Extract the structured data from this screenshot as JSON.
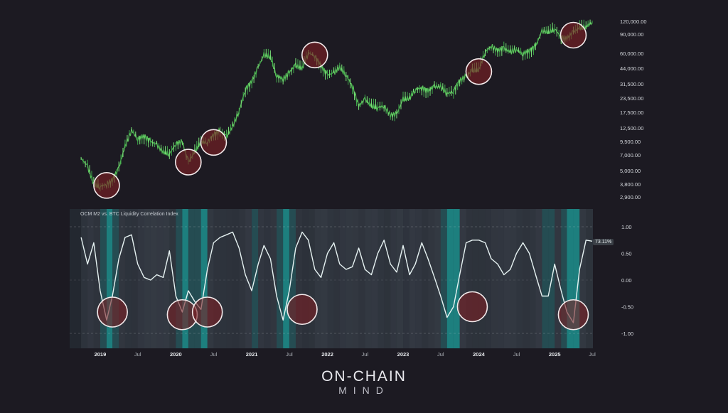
{
  "chart_data": [
    {
      "type": "line",
      "title": "",
      "scale": "log",
      "series": [
        {
          "color": "#5fd35f",
          "x": [
            "2018-10",
            "2018-11",
            "2018-12",
            "2019-01",
            "2019-02",
            "2019-03",
            "2019-04",
            "2019-05",
            "2019-06",
            "2019-07",
            "2019-08",
            "2019-09",
            "2019-10",
            "2019-11",
            "2019-12",
            "2020-01",
            "2020-02",
            "2020-03",
            "2020-04",
            "2020-05",
            "2020-06",
            "2020-07",
            "2020-08",
            "2020-09",
            "2020-10",
            "2020-11",
            "2020-12",
            "2021-01",
            "2021-02",
            "2021-03",
            "2021-04",
            "2021-05",
            "2021-06",
            "2021-07",
            "2021-08",
            "2021-09",
            "2021-10",
            "2021-11",
            "2021-12",
            "2022-01",
            "2022-02",
            "2022-03",
            "2022-04",
            "2022-05",
            "2022-06",
            "2022-07",
            "2022-08",
            "2022-09",
            "2022-10",
            "2022-11",
            "2022-12",
            "2023-01",
            "2023-02",
            "2023-03",
            "2023-04",
            "2023-05",
            "2023-06",
            "2023-07",
            "2023-08",
            "2023-09",
            "2023-10",
            "2023-11",
            "2023-12",
            "2024-01",
            "2024-02",
            "2024-03",
            "2024-04",
            "2024-05",
            "2024-06",
            "2024-07",
            "2024-08",
            "2024-09",
            "2024-10",
            "2024-11",
            "2024-12",
            "2025-01",
            "2025-02",
            "2025-03",
            "2025-04",
            "2025-05",
            "2025-06",
            "2025-07"
          ],
          "y": [
            6500,
            5500,
            3800,
            3600,
            3800,
            4100,
            5300,
            8500,
            12000,
            10000,
            10500,
            9500,
            8800,
            7500,
            7200,
            9000,
            9500,
            6000,
            7500,
            9500,
            9300,
            11000,
            11700,
            10500,
            13000,
            18000,
            28000,
            33000,
            45000,
            58000,
            56000,
            37000,
            35000,
            40000,
            47000,
            44000,
            61000,
            57000,
            46000,
            38000,
            40000,
            45000,
            38000,
            30000,
            20000,
            23000,
            20000,
            19500,
            20000,
            16500,
            16800,
            23000,
            23500,
            28000,
            29000,
            27000,
            30000,
            29500,
            26000,
            27000,
            34000,
            37000,
            42000,
            43000,
            62000,
            70000,
            63000,
            67000,
            62000,
            65000,
            59000,
            63000,
            70000,
            96000,
            94000,
            102000,
            84000,
            82000,
            95000,
            104000,
            107000,
            118000
          ]
        }
      ],
      "y_ticks": [
        "120,000.00",
        "90,000.00",
        "60,000.00",
        "44,000.00",
        "31,500.00",
        "23,500.00",
        "17,500.00",
        "12,500.00",
        "9,500.00",
        "7,000.00",
        "5,000.00",
        "3,800.00",
        "2,900.00"
      ],
      "markers": [
        {
          "date": "2019-02",
          "value": 3700
        },
        {
          "date": "2020-03",
          "value": 6000
        },
        {
          "date": "2020-07",
          "value": 9300
        },
        {
          "date": "2021-11",
          "value": 58000
        },
        {
          "date": "2024-01",
          "value": 41000
        },
        {
          "date": "2025-04",
          "value": 88000
        }
      ]
    },
    {
      "type": "line",
      "title": "OCM M2 vs. BTC Liquidity Correlation Index",
      "y_ticks": [
        "1.00",
        "0.50",
        "0.00",
        "-0.50",
        "-1.00"
      ],
      "ylim": [
        -1.1,
        1.1
      ],
      "current_value": "73.11%",
      "x_ticks": [
        "2019",
        "Jul",
        "2020",
        "Jul",
        "2021",
        "Jul",
        "2022",
        "Jul",
        "2023",
        "Jul",
        "2024",
        "Jul",
        "2025",
        "Jul"
      ],
      "series": [
        {
          "color": "#e6f2f2",
          "x": [
            "2018-10",
            "2018-11",
            "2018-12",
            "2019-01",
            "2019-02",
            "2019-03",
            "2019-04",
            "2019-05",
            "2019-06",
            "2019-07",
            "2019-08",
            "2019-09",
            "2019-10",
            "2019-11",
            "2019-12",
            "2020-01",
            "2020-02",
            "2020-03",
            "2020-04",
            "2020-05",
            "2020-06",
            "2020-07",
            "2020-08",
            "2020-09",
            "2020-10",
            "2020-11",
            "2020-12",
            "2021-01",
            "2021-02",
            "2021-03",
            "2021-04",
            "2021-05",
            "2021-06",
            "2021-07",
            "2021-08",
            "2021-09",
            "2021-10",
            "2021-11",
            "2021-12",
            "2022-01",
            "2022-02",
            "2022-03",
            "2022-04",
            "2022-05",
            "2022-06",
            "2022-07",
            "2022-08",
            "2022-09",
            "2022-10",
            "2022-11",
            "2022-12",
            "2023-01",
            "2023-02",
            "2023-03",
            "2023-04",
            "2023-05",
            "2023-06",
            "2023-07",
            "2023-08",
            "2023-09",
            "2023-10",
            "2023-11",
            "2023-12",
            "2024-01",
            "2024-02",
            "2024-03",
            "2024-04",
            "2024-05",
            "2024-06",
            "2024-07",
            "2024-08",
            "2024-09",
            "2024-10",
            "2024-11",
            "2024-12",
            "2025-01",
            "2025-02",
            "2025-03",
            "2025-04",
            "2025-05",
            "2025-06",
            "2025-07"
          ],
          "y": [
            0.8,
            0.3,
            0.7,
            -0.2,
            -0.75,
            -0.3,
            0.4,
            0.8,
            0.85,
            0.3,
            0.05,
            0.0,
            0.1,
            0.05,
            0.55,
            -0.3,
            -0.6,
            -0.2,
            -0.4,
            -0.55,
            0.2,
            0.7,
            0.8,
            0.85,
            0.9,
            0.6,
            0.1,
            -0.2,
            0.3,
            0.65,
            0.4,
            -0.3,
            -0.75,
            -0.2,
            0.6,
            0.9,
            0.75,
            0.2,
            0.05,
            0.5,
            0.7,
            0.3,
            0.2,
            0.25,
            0.6,
            0.2,
            0.1,
            0.5,
            0.75,
            0.3,
            0.15,
            0.65,
            0.1,
            0.3,
            0.7,
            0.4,
            0.05,
            -0.3,
            -0.7,
            -0.5,
            0.1,
            0.7,
            0.75,
            0.75,
            0.7,
            0.4,
            0.3,
            0.1,
            0.2,
            0.5,
            0.7,
            0.5,
            0.1,
            -0.3,
            -0.3,
            0.3,
            -0.2,
            -0.6,
            -0.8,
            0.2,
            0.75,
            0.73
          ]
        }
      ],
      "markers": [
        {
          "date": "2019-03",
          "value": -0.6
        },
        {
          "date": "2020-02",
          "value": -0.65
        },
        {
          "date": "2020-06",
          "value": -0.6
        },
        {
          "date": "2021-09",
          "value": -0.55
        },
        {
          "date": "2023-12",
          "value": -0.5
        },
        {
          "date": "2025-04",
          "value": -0.65
        }
      ]
    }
  ],
  "brand": {
    "line1": "ON-CHAIN",
    "line2": "MIND"
  }
}
